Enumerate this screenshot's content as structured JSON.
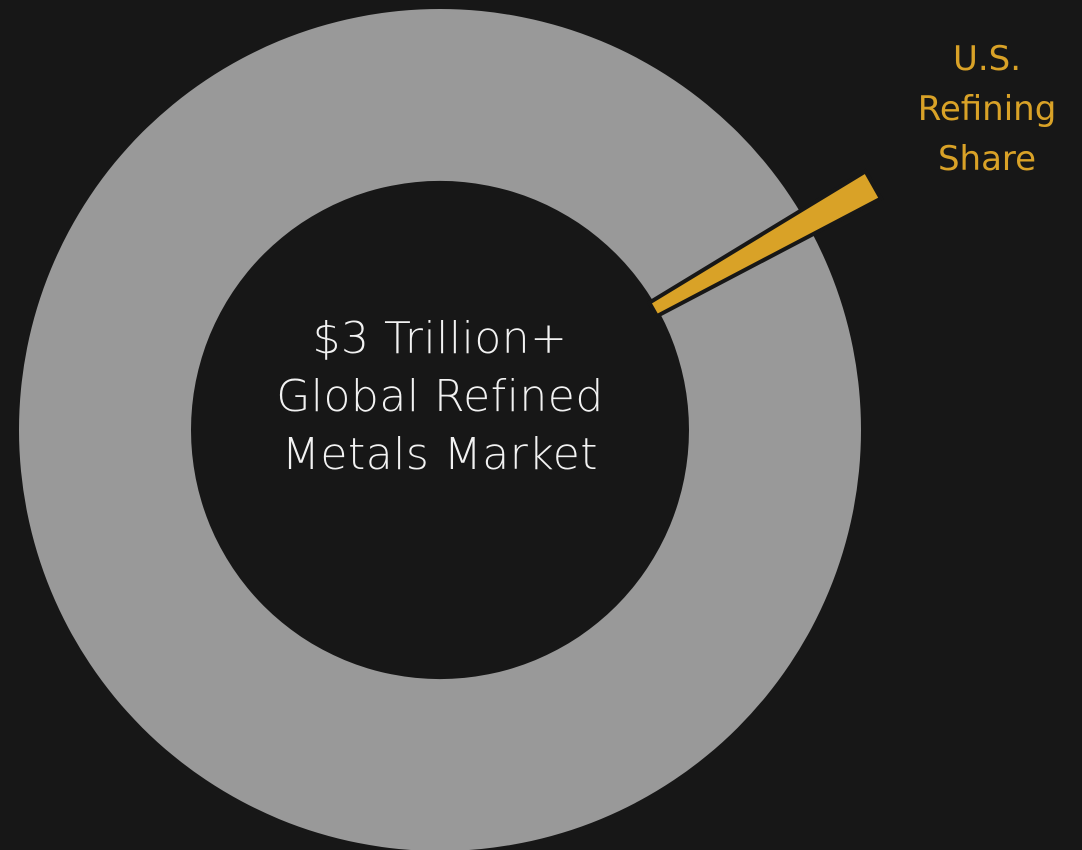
{
  "chart_data": {
    "type": "pie",
    "title": "",
    "slices": [
      {
        "name": "",
        "value": 99.0,
        "color": "#999999"
      },
      {
        "name": "U.S. Refining Share",
        "value": 1.0,
        "color": "#d9a227"
      }
    ],
    "center_label": [
      "$3 Trillion+",
      "Global Refined",
      "Metals Market"
    ],
    "callout_label": [
      "U.S.",
      "Refining",
      "Share"
    ],
    "background": "#171717"
  }
}
